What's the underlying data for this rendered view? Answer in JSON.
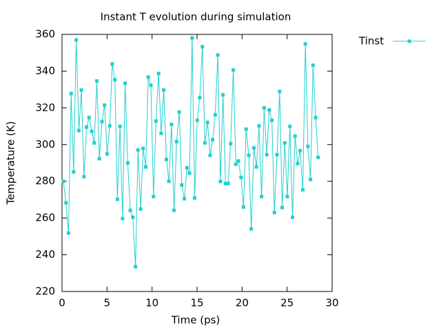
{
  "chart_data": {
    "type": "line",
    "title": "Instant T evolution during simulation",
    "xlabel": "Time (ps)",
    "ylabel": "Temperature (K)",
    "x": [
      0.15,
      0.44,
      0.72,
      1.01,
      1.29,
      1.58,
      1.87,
      2.15,
      2.44,
      2.72,
      3.01,
      3.3,
      3.58,
      3.87,
      4.15,
      4.44,
      4.72,
      5.01,
      5.3,
      5.58,
      5.87,
      6.15,
      6.44,
      6.73,
      7.01,
      7.3,
      7.58,
      7.87,
      8.16,
      8.44,
      8.73,
      9.01,
      9.3,
      9.58,
      9.87,
      10.16,
      10.44,
      10.73,
      11.01,
      11.3,
      11.59,
      11.87,
      12.16,
      12.44,
      12.73,
      13.02,
      13.3,
      13.59,
      13.87,
      14.16,
      14.45,
      14.73,
      15.02,
      15.3,
      15.59,
      15.87,
      16.16,
      16.45,
      16.73,
      17.02,
      17.3,
      17.59,
      17.88,
      18.16,
      18.45,
      18.73,
      19.02,
      19.31,
      19.59,
      19.88,
      20.16,
      20.45,
      20.74,
      21.02,
      21.31,
      21.59,
      21.88,
      22.16,
      22.45,
      22.74,
      23.02,
      23.31,
      23.59,
      23.88,
      24.17,
      24.45,
      24.74,
      25.02,
      25.31,
      25.6,
      25.88,
      26.17,
      26.45,
      26.74,
      27.03,
      27.31,
      27.6,
      27.88,
      28.17,
      28.45
    ],
    "series": [
      {
        "name": "Tinst",
        "color": "#20cfcf",
        "values": [
          280,
          268.3,
          251.8,
          327.8,
          285.1,
          357,
          307.6,
          329.7,
          282.5,
          309.5,
          314.7,
          307.2,
          300.9,
          334.6,
          292.3,
          312.5,
          321.5,
          294.9,
          310.2,
          343.9,
          335.3,
          270.2,
          309.9,
          259.7,
          333.4,
          290,
          264.2,
          260.4,
          233.5,
          297.1,
          264.9,
          297.9,
          287.8,
          336.8,
          332.3,
          271.7,
          312.8,
          338.7,
          306.1,
          329.7,
          291.9,
          280,
          311,
          264.2,
          301.6,
          317.7,
          278,
          270.5,
          287.4,
          284.4,
          358.1,
          270.9,
          313.2,
          325.6,
          353.3,
          300.9,
          312.1,
          294.1,
          302.7,
          316.2,
          348.8,
          279.9,
          327.1,
          278.8,
          278.8,
          300.5,
          340.6,
          289.3,
          291.1,
          282.1,
          266,
          308.4,
          294.1,
          254.1,
          298.2,
          287.8,
          310.2,
          271.7,
          320,
          294.5,
          318.8,
          313.2,
          263,
          294.5,
          328.9,
          265.7,
          300.9,
          271.7,
          309.9,
          260.4,
          304.6,
          289.6,
          296.7,
          275.4,
          354.8,
          299,
          281,
          343.2,
          314.7,
          293
        ]
      }
    ],
    "xlim": [
      0,
      30
    ],
    "xticks": [
      0,
      5,
      10,
      15,
      20,
      25,
      30
    ],
    "ylim": [
      220,
      360
    ],
    "yticks": [
      220,
      240,
      260,
      280,
      300,
      320,
      340,
      360
    ],
    "grid": false,
    "legend": "outside-top-right"
  }
}
